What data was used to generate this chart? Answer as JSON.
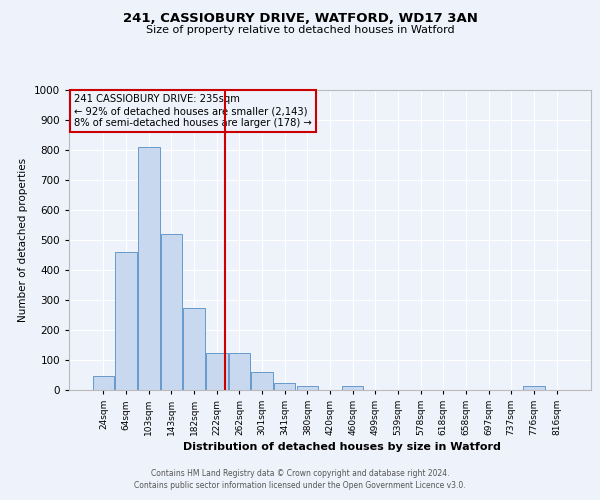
{
  "title": "241, CASSIOBURY DRIVE, WATFORD, WD17 3AN",
  "subtitle": "Size of property relative to detached houses in Watford",
  "xlabel": "Distribution of detached houses by size in Watford",
  "ylabel": "Number of detached properties",
  "bar_labels": [
    "24sqm",
    "64sqm",
    "103sqm",
    "143sqm",
    "182sqm",
    "222sqm",
    "262sqm",
    "301sqm",
    "341sqm",
    "380sqm",
    "420sqm",
    "460sqm",
    "499sqm",
    "539sqm",
    "578sqm",
    "618sqm",
    "658sqm",
    "697sqm",
    "737sqm",
    "776sqm",
    "816sqm"
  ],
  "bar_heights": [
    47,
    460,
    810,
    520,
    275,
    125,
    125,
    60,
    22,
    12,
    0,
    12,
    0,
    0,
    0,
    0,
    0,
    0,
    0,
    12,
    0
  ],
  "bar_color": "#c8d8ee",
  "bar_edgecolor": "#6699cc",
  "property_label": "241 CASSIOBURY DRIVE: 235sqm",
  "annotation_line1": "← 92% of detached houses are smaller (2,143)",
  "annotation_line2": "8% of semi-detached houses are larger (178) →",
  "vline_x_index": 5.38,
  "vline_color": "#cc0000",
  "annotation_box_color": "#cc0000",
  "ylim": [
    0,
    1000
  ],
  "background_color": "#eef2fa",
  "grid_color": "#ffffff",
  "footer_line1": "Contains HM Land Registry data © Crown copyright and database right 2024.",
  "footer_line2": "Contains public sector information licensed under the Open Government Licence v3.0."
}
